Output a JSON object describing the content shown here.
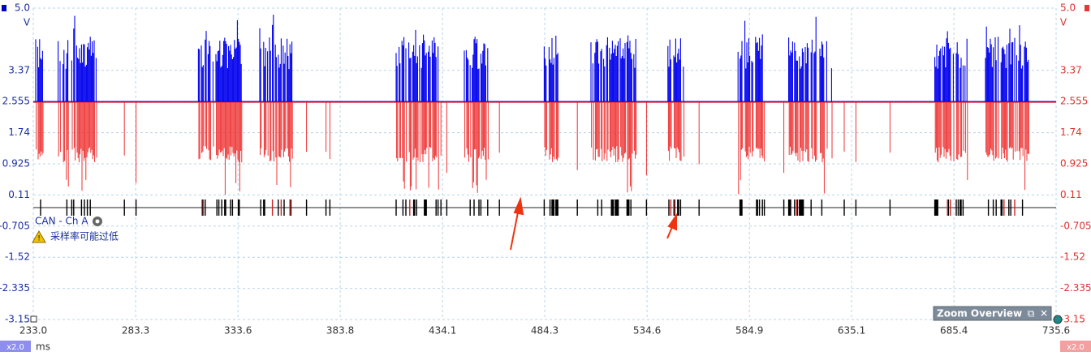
{
  "axes": {
    "y_left": {
      "unit": "V",
      "ticks": [
        "5.0",
        "3.37",
        "2.555",
        "1.74",
        "0.925",
        "0.11",
        "-0.705",
        "-1.52",
        "-2.335",
        "-3.15"
      ]
    },
    "y_right": {
      "unit": "V",
      "ticks": [
        "5.0",
        "3.37",
        "2.555",
        "1.74",
        "0.925",
        "0.11",
        "-0.705",
        "-1.52",
        "-2.335",
        "-3.15"
      ]
    },
    "x": {
      "unit": "ms",
      "ticks": [
        "233.0",
        "283.3",
        "333.6",
        "383.8",
        "434.1",
        "484.3",
        "534.6",
        "584.9",
        "635.1",
        "685.4",
        "735.6"
      ]
    }
  },
  "channel_label": "CAN - Ch A",
  "warning": "采样率可能过低",
  "zoom_overview": "Zoom Overview",
  "zoom_left": "x2.0",
  "zoom_right": "x2.0"
}
